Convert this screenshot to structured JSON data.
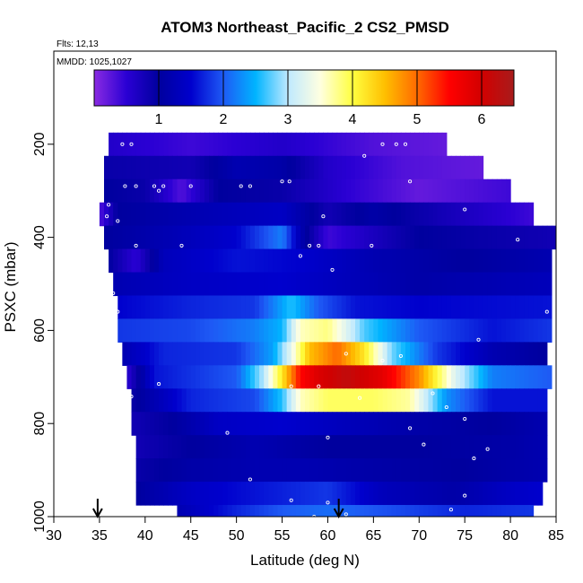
{
  "chart_data": {
    "type": "heatmap",
    "title": "ATOM3 Northeast_Pacific_2 CS2_PMSD",
    "flights_label": "Flts: 12,13",
    "dates_label": "MMDD: 1025,1027",
    "xlabel": "Latitude (deg N)",
    "ylabel": "PSXC (mbar)",
    "xlim": [
      30,
      85
    ],
    "ylim": [
      1000,
      0
    ],
    "x_ticks": [
      30,
      35,
      40,
      45,
      50,
      55,
      60,
      65,
      70,
      75,
      80,
      85
    ],
    "y_ticks": [
      200,
      400,
      600,
      800,
      1000
    ],
    "colorbar": {
      "range": [
        0,
        6.5
      ],
      "ticks": [
        1,
        2,
        3,
        4,
        5,
        6
      ],
      "colors": [
        "#8a2be2",
        "#2a00d4",
        "#00009e",
        "#0000cd",
        "#1e5af5",
        "#00b4ff",
        "#bfe9ff",
        "#ffffe0",
        "#ffff40",
        "#ffbf00",
        "#ff6a00",
        "#ff0000",
        "#d20000",
        "#a81c1c"
      ]
    },
    "arrows_lat": [
      34.8,
      61.2
    ],
    "layers": [
      {
        "p": 200,
        "lat_min": 36,
        "lat_max": 73,
        "values": [
          [
            36,
            0.6
          ],
          [
            45,
            0.4
          ],
          [
            55,
            0.6
          ],
          [
            65,
            0.3
          ],
          [
            73,
            0.2
          ]
        ]
      },
      {
        "p": 250,
        "lat_min": 35.5,
        "lat_max": 77,
        "values": [
          [
            35.5,
            0.9
          ],
          [
            45,
            0.8
          ],
          [
            50,
            1.2
          ],
          [
            55,
            1.1
          ],
          [
            60,
            0.6
          ],
          [
            68,
            0.3
          ],
          [
            77,
            0.2
          ]
        ]
      },
      {
        "p": 300,
        "lat_min": 35.5,
        "lat_max": 80,
        "values": [
          [
            35.5,
            1.0
          ],
          [
            40,
            0.9
          ],
          [
            44,
            0.3
          ],
          [
            48,
            1.0
          ],
          [
            55,
            0.9
          ],
          [
            62,
            0.5
          ],
          [
            70,
            0.2
          ],
          [
            80,
            0.4
          ]
        ]
      },
      {
        "p": 350,
        "lat_min": 35,
        "lat_max": 82.5,
        "values": [
          [
            35,
            0.3
          ],
          [
            37,
            1.0
          ],
          [
            45,
            1.2
          ],
          [
            55,
            1.4
          ],
          [
            60,
            0.8
          ],
          [
            65,
            1.1
          ],
          [
            72,
            0.8
          ],
          [
            82.5,
            0.4
          ]
        ]
      },
      {
        "p": 400,
        "lat_min": 35.5,
        "lat_max": 85,
        "values": [
          [
            35.5,
            1.0
          ],
          [
            42,
            1.2
          ],
          [
            50,
            1.5
          ],
          [
            55,
            2.2
          ],
          [
            57,
            1.2
          ],
          [
            60,
            0.4
          ],
          [
            70,
            1.0
          ],
          [
            85,
            0.8
          ]
        ]
      },
      {
        "p": 450,
        "lat_min": 36,
        "lat_max": 84.5,
        "values": [
          [
            36,
            1.0
          ],
          [
            39,
            0.5
          ],
          [
            42,
            1.3
          ],
          [
            50,
            1.6
          ],
          [
            57,
            1.5
          ],
          [
            65,
            1.2
          ],
          [
            75,
            1.0
          ],
          [
            84.5,
            1.2
          ]
        ]
      },
      {
        "p": 500,
        "lat_min": 36.5,
        "lat_max": 84.5,
        "values": [
          [
            36.5,
            1.2
          ],
          [
            45,
            1.4
          ],
          [
            55,
            1.5
          ],
          [
            62,
            1.3
          ],
          [
            70,
            1.1
          ],
          [
            84.5,
            1.3
          ]
        ]
      },
      {
        "p": 550,
        "lat_min": 37,
        "lat_max": 84.5,
        "values": [
          [
            37,
            1.5
          ],
          [
            45,
            1.7
          ],
          [
            52,
            1.8
          ],
          [
            56,
            2.6
          ],
          [
            59,
            2.0
          ],
          [
            63,
            1.6
          ],
          [
            70,
            1.5
          ],
          [
            84.5,
            1.6
          ]
        ]
      },
      {
        "p": 600,
        "lat_min": 37,
        "lat_max": 84.5,
        "values": [
          [
            37,
            1.8
          ],
          [
            45,
            1.9
          ],
          [
            52,
            2.2
          ],
          [
            55,
            2.5
          ],
          [
            57,
            3.6
          ],
          [
            60,
            3.8
          ],
          [
            64,
            2.7
          ],
          [
            70,
            2.0
          ],
          [
            78,
            1.6
          ],
          [
            84.5,
            1.8
          ]
        ]
      },
      {
        "p": 650,
        "lat_min": 37.5,
        "lat_max": 84,
        "values": [
          [
            37.5,
            1.2
          ],
          [
            42,
            1.7
          ],
          [
            50,
            1.8
          ],
          [
            54,
            2.4
          ],
          [
            56,
            3.3
          ],
          [
            58,
            4.5
          ],
          [
            61,
            5.0
          ],
          [
            64,
            4.2
          ],
          [
            67,
            2.8
          ],
          [
            72,
            1.8
          ],
          [
            78,
            1.2
          ],
          [
            84,
            1.0
          ]
        ]
      },
      {
        "p": 700,
        "lat_min": 38,
        "lat_max": 84.5,
        "values": [
          [
            38,
            0.5
          ],
          [
            41,
            1.6
          ],
          [
            50,
            2.0
          ],
          [
            53,
            3.0
          ],
          [
            55,
            4.2
          ],
          [
            57,
            5.5
          ],
          [
            59,
            5.9
          ],
          [
            62,
            6.2
          ],
          [
            66,
            5.8
          ],
          [
            70,
            4.8
          ],
          [
            74,
            3.2
          ],
          [
            78,
            2.2
          ],
          [
            84.5,
            2.0
          ]
        ]
      },
      {
        "p": 750,
        "lat_min": 38.5,
        "lat_max": 84,
        "values": [
          [
            38.5,
            0.9
          ],
          [
            45,
            1.7
          ],
          [
            52,
            1.9
          ],
          [
            55,
            2.6
          ],
          [
            57,
            3.6
          ],
          [
            60,
            3.9
          ],
          [
            65,
            3.9
          ],
          [
            69,
            3.7
          ],
          [
            73,
            2.3
          ],
          [
            78,
            1.6
          ],
          [
            84,
            1.6
          ]
        ]
      },
      {
        "p": 800,
        "lat_min": 38.5,
        "lat_max": 84,
        "values": [
          [
            38.5,
            0.8
          ],
          [
            43,
            1.0
          ],
          [
            48,
            1.4
          ],
          [
            55,
            1.5
          ],
          [
            62,
            1.3
          ],
          [
            70,
            1.1
          ],
          [
            78,
            1.0
          ],
          [
            84,
            1.2
          ]
        ]
      },
      {
        "p": 850,
        "lat_min": 39,
        "lat_max": 84,
        "values": [
          [
            39,
            0.8
          ],
          [
            45,
            1.0
          ],
          [
            52,
            1.2
          ],
          [
            60,
            1.0
          ],
          [
            70,
            1.0
          ],
          [
            80,
            1.1
          ],
          [
            84,
            1.2
          ]
        ]
      },
      {
        "p": 900,
        "lat_min": 39,
        "lat_max": 84,
        "values": [
          [
            39,
            0.9
          ],
          [
            45,
            1.1
          ],
          [
            52,
            1.2
          ],
          [
            58,
            1.2
          ],
          [
            65,
            1.1
          ],
          [
            75,
            1.0
          ],
          [
            84,
            1.2
          ]
        ]
      },
      {
        "p": 950,
        "lat_min": 39,
        "lat_max": 83.5,
        "values": [
          [
            39,
            1.0
          ],
          [
            45,
            1.4
          ],
          [
            52,
            1.6
          ],
          [
            60,
            1.8
          ],
          [
            66,
            1.3
          ],
          [
            74,
            1.1
          ],
          [
            80,
            1.4
          ],
          [
            83.5,
            1.5
          ]
        ]
      },
      {
        "p": 1000,
        "lat_min": 43.5,
        "lat_max": 82.5,
        "values": [
          [
            43.5,
            1.2
          ],
          [
            50,
            1.7
          ],
          [
            55,
            2.0
          ],
          [
            60,
            2.1
          ],
          [
            68,
            1.9
          ],
          [
            75,
            1.7
          ],
          [
            82.5,
            1.8
          ]
        ]
      }
    ],
    "markers": [
      [
        37.5,
        200
      ],
      [
        38.5,
        200
      ],
      [
        66,
        200
      ],
      [
        67.5,
        200
      ],
      [
        68.5,
        200
      ],
      [
        35.5,
        215
      ],
      [
        64,
        225
      ],
      [
        37.8,
        290
      ],
      [
        39,
        290
      ],
      [
        41,
        290
      ],
      [
        42,
        290
      ],
      [
        45,
        290
      ],
      [
        50.5,
        290
      ],
      [
        51.5,
        290
      ],
      [
        55,
        280
      ],
      [
        55.8,
        280
      ],
      [
        69,
        280
      ],
      [
        36,
        330
      ],
      [
        41.5,
        300
      ],
      [
        75,
        340
      ],
      [
        35.8,
        355
      ],
      [
        59.5,
        355
      ],
      [
        37,
        365
      ],
      [
        80.8,
        405
      ],
      [
        58,
        418
      ],
      [
        39,
        418
      ],
      [
        44,
        418
      ],
      [
        59,
        418
      ],
      [
        64.8,
        418
      ],
      [
        57,
        440
      ],
      [
        60.5,
        470
      ],
      [
        36.5,
        520
      ],
      [
        37,
        560
      ],
      [
        84,
        560
      ],
      [
        36,
        580
      ],
      [
        36.5,
        600
      ],
      [
        62,
        650
      ],
      [
        76.5,
        620
      ],
      [
        68,
        655
      ],
      [
        66,
        665
      ],
      [
        36.8,
        700
      ],
      [
        36.4,
        705
      ],
      [
        41.5,
        715
      ],
      [
        56,
        720
      ],
      [
        59,
        720
      ],
      [
        38.5,
        742
      ],
      [
        63.5,
        745
      ],
      [
        71.5,
        735
      ],
      [
        73,
        765
      ],
      [
        75,
        790
      ],
      [
        49,
        820
      ],
      [
        60,
        830
      ],
      [
        69,
        810
      ],
      [
        70.5,
        845
      ],
      [
        77.5,
        855
      ],
      [
        76,
        875
      ],
      [
        51.5,
        920
      ],
      [
        75,
        955
      ],
      [
        56,
        965
      ],
      [
        60,
        970
      ],
      [
        62,
        995
      ],
      [
        73.5,
        985
      ],
      [
        39,
        1005
      ],
      [
        43.5,
        1005
      ],
      [
        51,
        1005
      ],
      [
        53.5,
        1005
      ],
      [
        58.5,
        1000
      ],
      [
        65,
        1005
      ],
      [
        71.5,
        1005
      ],
      [
        74,
        1010
      ]
    ]
  }
}
